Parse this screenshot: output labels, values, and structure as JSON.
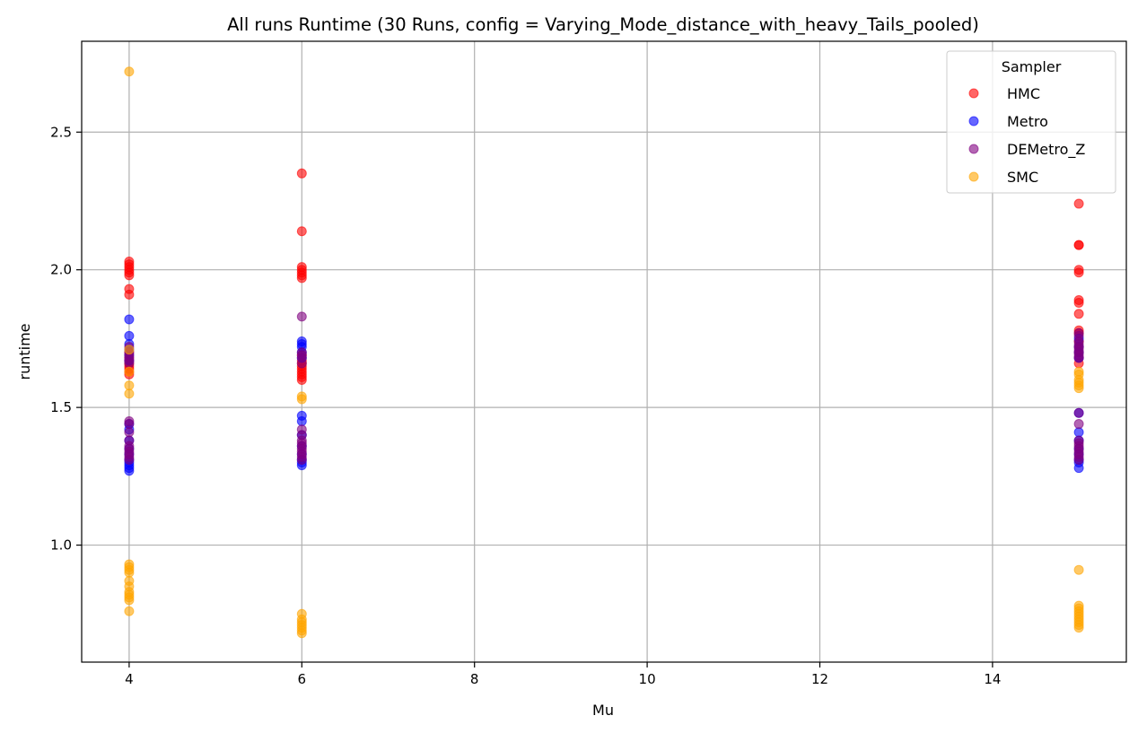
{
  "chart_data": {
    "type": "scatter",
    "title": "All runs Runtime (30 Runs, config = Varying_Mode_distance_with_heavy_Tails_pooled)",
    "xlabel": "Mu",
    "ylabel": "runtime",
    "xlim": [
      3.45,
      15.55
    ],
    "ylim": [
      0.575,
      2.83
    ],
    "xticks": [
      4,
      6,
      8,
      10,
      12,
      14
    ],
    "yticks": [
      1.0,
      1.5,
      2.0,
      2.5
    ],
    "ytick_labels": [
      "1.0",
      "1.5",
      "2.0",
      "2.5"
    ],
    "grid": true,
    "legend": {
      "title": "Sampler",
      "position": "top-right"
    },
    "series": [
      {
        "name": "HMC",
        "color": "#ff0000",
        "points": [
          [
            4,
            2.03
          ],
          [
            4,
            2.02
          ],
          [
            4,
            2.01
          ],
          [
            4,
            2.0
          ],
          [
            4,
            1.99
          ],
          [
            4,
            1.98
          ],
          [
            4,
            1.93
          ],
          [
            4,
            1.91
          ],
          [
            4,
            1.7
          ],
          [
            4,
            1.68
          ],
          [
            4,
            1.67
          ],
          [
            4,
            1.66
          ],
          [
            4,
            1.65
          ],
          [
            4,
            1.64
          ],
          [
            4,
            1.63
          ],
          [
            4,
            1.62
          ],
          [
            6,
            2.35
          ],
          [
            6,
            2.14
          ],
          [
            6,
            2.01
          ],
          [
            6,
            2.0
          ],
          [
            6,
            1.99
          ],
          [
            6,
            1.98
          ],
          [
            6,
            1.97
          ],
          [
            6,
            1.69
          ],
          [
            6,
            1.67
          ],
          [
            6,
            1.66
          ],
          [
            6,
            1.65
          ],
          [
            6,
            1.64
          ],
          [
            6,
            1.63
          ],
          [
            6,
            1.62
          ],
          [
            6,
            1.61
          ],
          [
            6,
            1.6
          ],
          [
            15,
            2.24
          ],
          [
            15,
            2.09
          ],
          [
            15,
            2.09
          ],
          [
            15,
            2.0
          ],
          [
            15,
            1.99
          ],
          [
            15,
            1.89
          ],
          [
            15,
            1.88
          ],
          [
            15,
            1.84
          ],
          [
            15,
            1.78
          ],
          [
            15,
            1.77
          ],
          [
            15,
            1.74
          ],
          [
            15,
            1.72
          ],
          [
            15,
            1.7
          ],
          [
            15,
            1.68
          ],
          [
            15,
            1.66
          ]
        ]
      },
      {
        "name": "Metro",
        "color": "#0000ff",
        "points": [
          [
            4,
            1.82
          ],
          [
            4,
            1.76
          ],
          [
            4,
            1.73
          ],
          [
            4,
            1.71
          ],
          [
            4,
            1.69
          ],
          [
            4,
            1.67
          ],
          [
            4,
            1.44
          ],
          [
            4,
            1.42
          ],
          [
            4,
            1.38
          ],
          [
            4,
            1.35
          ],
          [
            4,
            1.33
          ],
          [
            4,
            1.31
          ],
          [
            4,
            1.3
          ],
          [
            4,
            1.29
          ],
          [
            4,
            1.28
          ],
          [
            4,
            1.27
          ],
          [
            6,
            1.74
          ],
          [
            6,
            1.73
          ],
          [
            6,
            1.72
          ],
          [
            6,
            1.7
          ],
          [
            6,
            1.68
          ],
          [
            6,
            1.47
          ],
          [
            6,
            1.45
          ],
          [
            6,
            1.4
          ],
          [
            6,
            1.36
          ],
          [
            6,
            1.33
          ],
          [
            6,
            1.31
          ],
          [
            6,
            1.3
          ],
          [
            6,
            1.29
          ],
          [
            15,
            1.75
          ],
          [
            15,
            1.72
          ],
          [
            15,
            1.7
          ],
          [
            15,
            1.68
          ],
          [
            15,
            1.48
          ],
          [
            15,
            1.41
          ],
          [
            15,
            1.38
          ],
          [
            15,
            1.35
          ],
          [
            15,
            1.33
          ],
          [
            15,
            1.31
          ],
          [
            15,
            1.3
          ],
          [
            15,
            1.28
          ]
        ]
      },
      {
        "name": "DEMetro_Z",
        "color": "#800080",
        "points": [
          [
            4,
            1.72
          ],
          [
            4,
            1.7
          ],
          [
            4,
            1.69
          ],
          [
            4,
            1.68
          ],
          [
            4,
            1.67
          ],
          [
            4,
            1.66
          ],
          [
            4,
            1.45
          ],
          [
            4,
            1.44
          ],
          [
            4,
            1.41
          ],
          [
            4,
            1.38
          ],
          [
            4,
            1.36
          ],
          [
            4,
            1.35
          ],
          [
            4,
            1.34
          ],
          [
            4,
            1.33
          ],
          [
            4,
            1.32
          ],
          [
            4,
            1.31
          ],
          [
            6,
            1.83
          ],
          [
            6,
            1.7
          ],
          [
            6,
            1.69
          ],
          [
            6,
            1.68
          ],
          [
            6,
            1.66
          ],
          [
            6,
            1.42
          ],
          [
            6,
            1.4
          ],
          [
            6,
            1.38
          ],
          [
            6,
            1.37
          ],
          [
            6,
            1.36
          ],
          [
            6,
            1.35
          ],
          [
            6,
            1.34
          ],
          [
            6,
            1.33
          ],
          [
            6,
            1.32
          ],
          [
            6,
            1.31
          ],
          [
            15,
            1.77
          ],
          [
            15,
            1.76
          ],
          [
            15,
            1.74
          ],
          [
            15,
            1.73
          ],
          [
            15,
            1.72
          ],
          [
            15,
            1.71
          ],
          [
            15,
            1.7
          ],
          [
            15,
            1.69
          ],
          [
            15,
            1.68
          ],
          [
            15,
            1.48
          ],
          [
            15,
            1.44
          ],
          [
            15,
            1.38
          ],
          [
            15,
            1.37
          ],
          [
            15,
            1.36
          ],
          [
            15,
            1.35
          ],
          [
            15,
            1.34
          ],
          [
            15,
            1.33
          ],
          [
            15,
            1.32
          ],
          [
            15,
            1.31
          ]
        ]
      },
      {
        "name": "SMC",
        "color": "#ffa500",
        "points": [
          [
            4,
            2.72
          ],
          [
            4,
            1.71
          ],
          [
            4,
            1.63
          ],
          [
            4,
            1.58
          ],
          [
            4,
            1.55
          ],
          [
            4,
            0.93
          ],
          [
            4,
            0.92
          ],
          [
            4,
            0.91
          ],
          [
            4,
            0.9
          ],
          [
            4,
            0.87
          ],
          [
            4,
            0.85
          ],
          [
            4,
            0.83
          ],
          [
            4,
            0.82
          ],
          [
            4,
            0.81
          ],
          [
            4,
            0.8
          ],
          [
            4,
            0.76
          ],
          [
            6,
            1.54
          ],
          [
            6,
            1.53
          ],
          [
            6,
            0.75
          ],
          [
            6,
            0.73
          ],
          [
            6,
            0.72
          ],
          [
            6,
            0.71
          ],
          [
            6,
            0.7
          ],
          [
            6,
            0.69
          ],
          [
            6,
            0.68
          ],
          [
            15,
            1.63
          ],
          [
            15,
            1.62
          ],
          [
            15,
            1.6
          ],
          [
            15,
            1.59
          ],
          [
            15,
            1.58
          ],
          [
            15,
            1.57
          ],
          [
            15,
            0.91
          ],
          [
            15,
            0.78
          ],
          [
            15,
            0.77
          ],
          [
            15,
            0.76
          ],
          [
            15,
            0.75
          ],
          [
            15,
            0.74
          ],
          [
            15,
            0.73
          ],
          [
            15,
            0.72
          ],
          [
            15,
            0.71
          ],
          [
            15,
            0.7
          ]
        ]
      }
    ]
  }
}
